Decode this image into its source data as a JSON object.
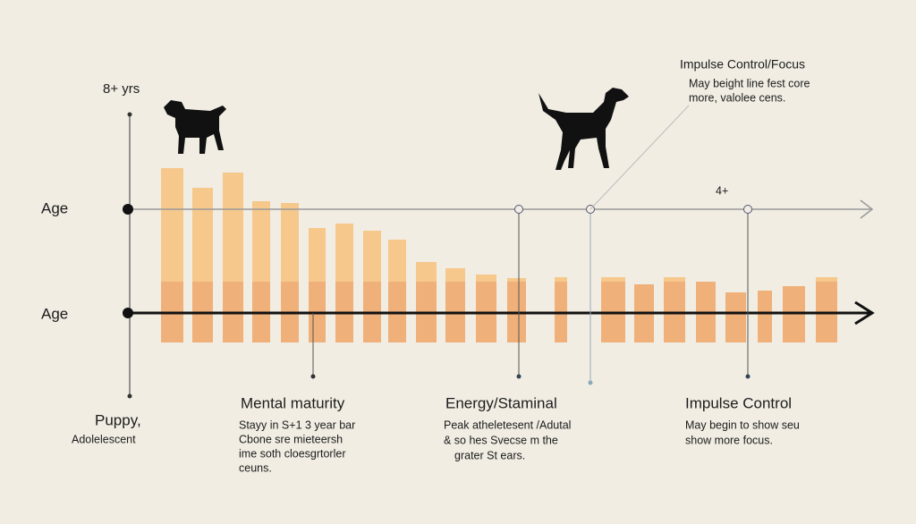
{
  "top_label": "8+ yrs",
  "axis_labels": [
    "Age",
    "Age"
  ],
  "right_marker_label": "4+",
  "callout": {
    "title": "Impulse Control/Focus",
    "lines": [
      "May beight line fest core",
      "more, valolee cens."
    ]
  },
  "stages": [
    {
      "title": "Puppy,",
      "lines": [
        "Adolelescent"
      ]
    },
    {
      "title": "Mental maturity",
      "lines": [
        "Stayy in S+1 3 year bar",
        "Cbone sre mieteersh",
        "ime soth cloesgrtorler",
        "ceuns."
      ]
    },
    {
      "title": "Energy/Staminal",
      "lines": [
        "Peak atheletesent /Adutal",
        "& so hes Svecse m the",
        "grater St ears."
      ]
    },
    {
      "title": "Impulse Control",
      "lines": [
        "May begin to show seu",
        "show more focus."
      ]
    }
  ]
}
